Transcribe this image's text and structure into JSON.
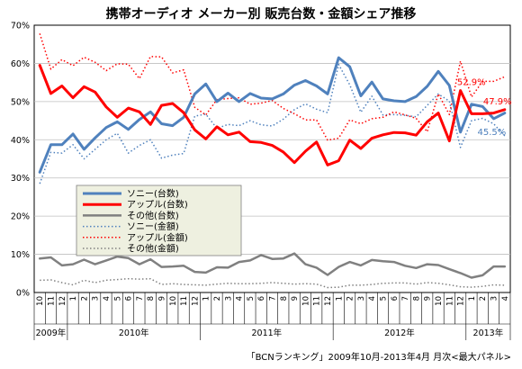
{
  "chart_data": {
    "type": "line",
    "title": "携帯オーディオ メーカー別 販売台数・金額シェア推移",
    "source": "「BCNランキング」2009年10月-2013年4月 月次<最大パネル>",
    "y_ticks": [
      "0%",
      "10%",
      "20%",
      "30%",
      "40%",
      "50%",
      "60%",
      "70%"
    ],
    "ylim": [
      0,
      70
    ],
    "x": [
      "10",
      "11",
      "12",
      "1",
      "2",
      "3",
      "4",
      "5",
      "6",
      "7",
      "8",
      "9",
      "10",
      "11",
      "12",
      "1",
      "2",
      "3",
      "4",
      "5",
      "6",
      "7",
      "8",
      "9",
      "10",
      "11",
      "12",
      "1",
      "2",
      "3",
      "4",
      "5",
      "6",
      "7",
      "8",
      "9",
      "10",
      "11",
      "12",
      "1",
      "2",
      "3",
      "4"
    ],
    "years": [
      {
        "label": "2009年",
        "from": 0,
        "to": 2
      },
      {
        "label": "2010年",
        "from": 3,
        "to": 14
      },
      {
        "label": "2011年",
        "from": 15,
        "to": 26
      },
      {
        "label": "2012年",
        "from": 27,
        "to": 38
      },
      {
        "label": "2013年",
        "from": 39,
        "to": 42
      }
    ],
    "series": [
      {
        "name": "ソニー(台数)",
        "color": "#4f81bd",
        "style": "solid",
        "width": 3,
        "values": [
          31.5,
          38.7,
          38.7,
          41.5,
          37.5,
          40.5,
          43.2,
          44.7,
          42.7,
          45.3,
          47.3,
          44.2,
          43.7,
          45.9,
          52.0,
          54.6,
          50.0,
          52.2,
          50.0,
          52.1,
          50.9,
          50.7,
          52.0,
          54.3,
          55.5,
          54.1,
          52.0,
          61.5,
          59.1,
          51.5,
          55.1,
          50.7,
          50.2,
          50.0,
          51.3,
          54.0,
          57.9,
          54.2,
          42.0,
          49.3,
          48.7,
          45.5,
          47.0
        ]
      },
      {
        "name": "アップル(台数)",
        "color": "#ff0000",
        "style": "solid",
        "width": 3,
        "values": [
          59.5,
          52.1,
          54.1,
          51.0,
          53.9,
          52.5,
          48.6,
          45.9,
          48.3,
          47.3,
          44.0,
          49.0,
          49.5,
          47.1,
          42.6,
          40.2,
          43.4,
          41.3,
          42.0,
          39.5,
          39.3,
          38.5,
          36.8,
          34.0,
          37.0,
          39.4,
          33.4,
          34.5,
          39.9,
          37.7,
          40.4,
          41.3,
          41.9,
          41.8,
          41.2,
          44.7,
          47.0,
          39.7,
          52.9,
          46.8,
          46.8,
          47.0,
          47.9
        ]
      },
      {
        "name": "その他(台数)",
        "color": "#808080",
        "style": "solid",
        "width": 2.5,
        "values": [
          8.9,
          9.2,
          7.1,
          7.4,
          8.6,
          7.4,
          8.4,
          9.4,
          9.0,
          7.4,
          8.7,
          6.7,
          6.8,
          7.0,
          5.4,
          5.2,
          6.6,
          6.5,
          8.0,
          8.4,
          9.8,
          8.8,
          8.9,
          10.2,
          7.4,
          6.5,
          4.6,
          6.7,
          8.0,
          7.1,
          8.5,
          8.2,
          8.0,
          7.0,
          6.4,
          7.4,
          7.2,
          6.1,
          5.1,
          3.9,
          4.5,
          6.8,
          6.8
        ]
      },
      {
        "name": "ソニー(金額)",
        "color": "#4f81bd",
        "style": "dotted",
        "width": 1.5,
        "values": [
          28.5,
          36.7,
          36.5,
          38.7,
          35.0,
          37.5,
          40.0,
          41.7,
          36.5,
          38.5,
          40.0,
          35.2,
          36.0,
          36.4,
          46.2,
          46.7,
          43.0,
          44.0,
          43.7,
          45.0,
          43.9,
          43.6,
          45.4,
          47.9,
          49.4,
          48.0,
          47.1,
          59.7,
          54.4,
          47.2,
          51.4,
          46.5,
          46.6,
          46.4,
          46.0,
          49.0,
          52.0,
          50.1,
          38.0,
          45.0,
          45.6,
          44.2,
          41.0
        ]
      },
      {
        "name": "アップル(金額)",
        "color": "#ff0000",
        "style": "dotted",
        "width": 1.5,
        "values": [
          67.8,
          58.5,
          61.0,
          59.4,
          61.6,
          60.3,
          58.1,
          59.9,
          59.8,
          56.0,
          61.8,
          61.7,
          57.5,
          58.3,
          48.5,
          46.5,
          50.5,
          50.8,
          51.0,
          49.3,
          49.6,
          50.3,
          48.2,
          46.8,
          45.2,
          45.2,
          39.9,
          40.4,
          45.2,
          44.2,
          45.5,
          45.9,
          47.3,
          46.5,
          45.6,
          42.1,
          52.0,
          46.6,
          60.6,
          51.2,
          55.3,
          55.3,
          56.5
        ]
      },
      {
        "name": "その他(金額)",
        "color": "#808080",
        "style": "dotted",
        "width": 1.5,
        "values": [
          3.2,
          3.3,
          2.6,
          2.0,
          3.2,
          2.6,
          3.2,
          3.4,
          3.6,
          3.5,
          3.6,
          2.1,
          2.3,
          2.1,
          2.0,
          1.9,
          2.2,
          2.4,
          2.3,
          2.3,
          2.4,
          2.6,
          2.4,
          2.2,
          2.3,
          2.2,
          1.3,
          1.4,
          1.9,
          1.9,
          2.1,
          2.4,
          2.5,
          2.5,
          2.2,
          2.6,
          2.4,
          2.0,
          1.5,
          1.4,
          1.6,
          2.0,
          1.9
        ]
      }
    ],
    "annotations": [
      {
        "text": "52.9%",
        "series": 1,
        "index": 38,
        "color": "#ff0000"
      },
      {
        "text": "47.9%",
        "series": 1,
        "index": 42,
        "color": "#ff0000"
      },
      {
        "text": "45.5%",
        "series": 0,
        "index": 41,
        "color": "#4f81bd"
      }
    ],
    "grid": true,
    "legend_position": "left-center"
  }
}
